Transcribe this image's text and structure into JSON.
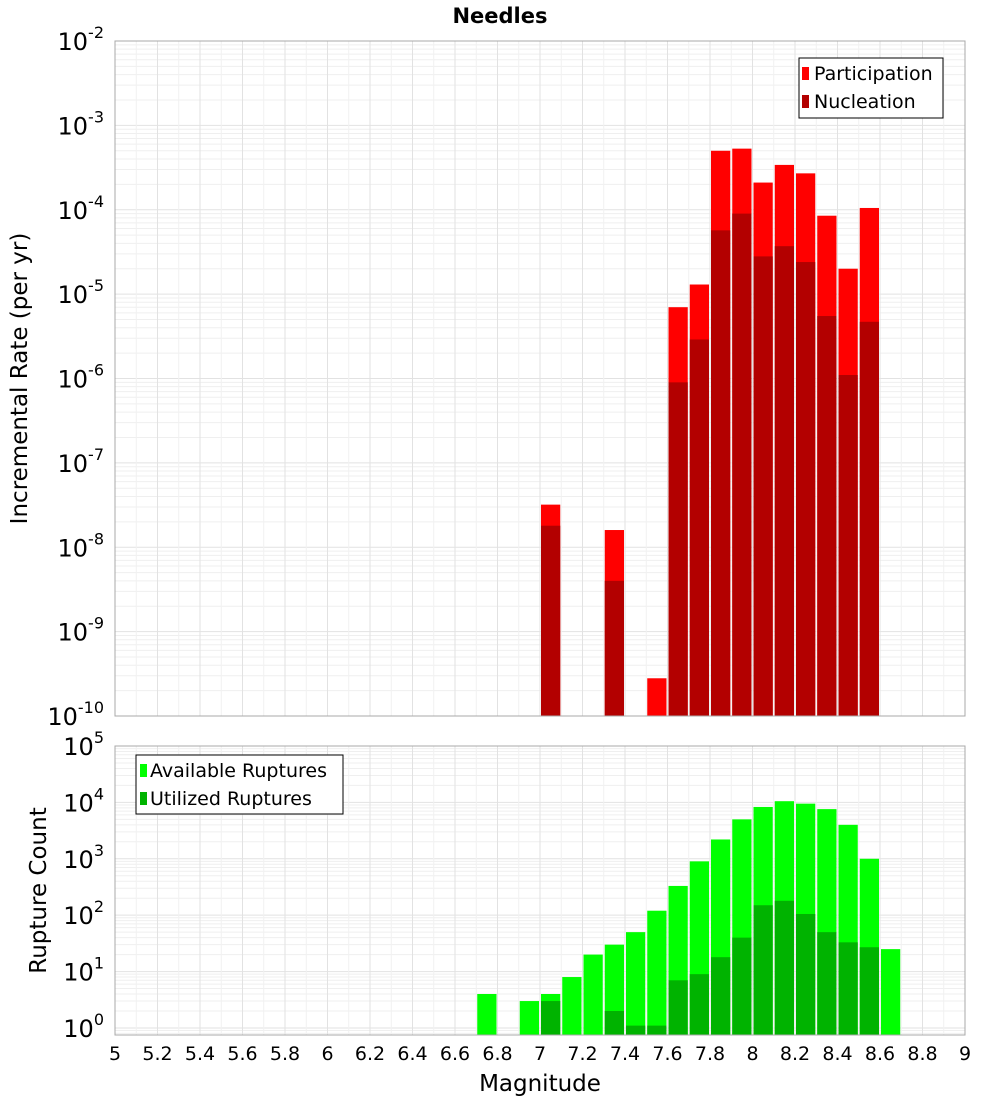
{
  "chart_data": [
    {
      "type": "bar",
      "title": "Needles",
      "ylabel": "Incremental Rate (per yr)",
      "xlabel": "",
      "yscale": "log",
      "ylim": [
        1e-10,
        0.01
      ],
      "xlim": [
        5,
        9
      ],
      "grid": true,
      "legend_position": "top-right",
      "x": [
        7.05,
        7.35,
        7.55,
        7.65,
        7.75,
        7.85,
        7.95,
        8.05,
        8.15,
        8.25,
        8.35,
        8.45,
        8.55
      ],
      "series": [
        {
          "name": "Participation",
          "color": "#ff0000",
          "values": [
            3.2e-08,
            1.6e-08,
            2.8e-10,
            7e-06,
            1.3e-05,
            0.0005,
            0.00053,
            0.00021,
            0.00034,
            0.00027,
            8.5e-05,
            2e-05,
            0.000105
          ]
        },
        {
          "name": "Nucleation",
          "color": "#b30000",
          "values": [
            1.8e-08,
            4e-09,
            null,
            9e-07,
            2.9e-06,
            5.7e-05,
            9e-05,
            2.8e-05,
            3.7e-05,
            2.4e-05,
            5.5e-06,
            1.1e-06,
            4.7e-06
          ]
        }
      ]
    },
    {
      "type": "bar",
      "title": "",
      "ylabel": "Rupture Count",
      "xlabel": "Magnitude",
      "yscale": "log",
      "ylim": [
        0.75,
        100000.0
      ],
      "xlim": [
        5,
        9
      ],
      "grid": true,
      "legend_position": "top-left",
      "x_ticks": [
        "5",
        "5.2",
        "5.4",
        "5.6",
        "5.8",
        "6",
        "6.2",
        "6.4",
        "6.6",
        "6.8",
        "7",
        "7.2",
        "7.4",
        "7.6",
        "7.8",
        "8",
        "8.2",
        "8.4",
        "8.6",
        "8.8",
        "9"
      ],
      "x": [
        6.75,
        6.95,
        7.05,
        7.15,
        7.25,
        7.35,
        7.45,
        7.55,
        7.65,
        7.75,
        7.85,
        7.95,
        8.05,
        8.15,
        8.25,
        8.35,
        8.45,
        8.55,
        8.65
      ],
      "series": [
        {
          "name": "Available Ruptures",
          "color": "#00ff00",
          "values": [
            4,
            3,
            4,
            8,
            20,
            30,
            50,
            120,
            330,
            900,
            2200,
            5000,
            8300,
            10500,
            9500,
            7600,
            4000,
            1000,
            25
          ]
        },
        {
          "name": "Utilized Ruptures",
          "color": "#00b300",
          "values": [
            null,
            null,
            3,
            null,
            null,
            2,
            1.1,
            1.1,
            7,
            9,
            18,
            40,
            150,
            180,
            105,
            50,
            33,
            27,
            null
          ]
        }
      ]
    }
  ]
}
